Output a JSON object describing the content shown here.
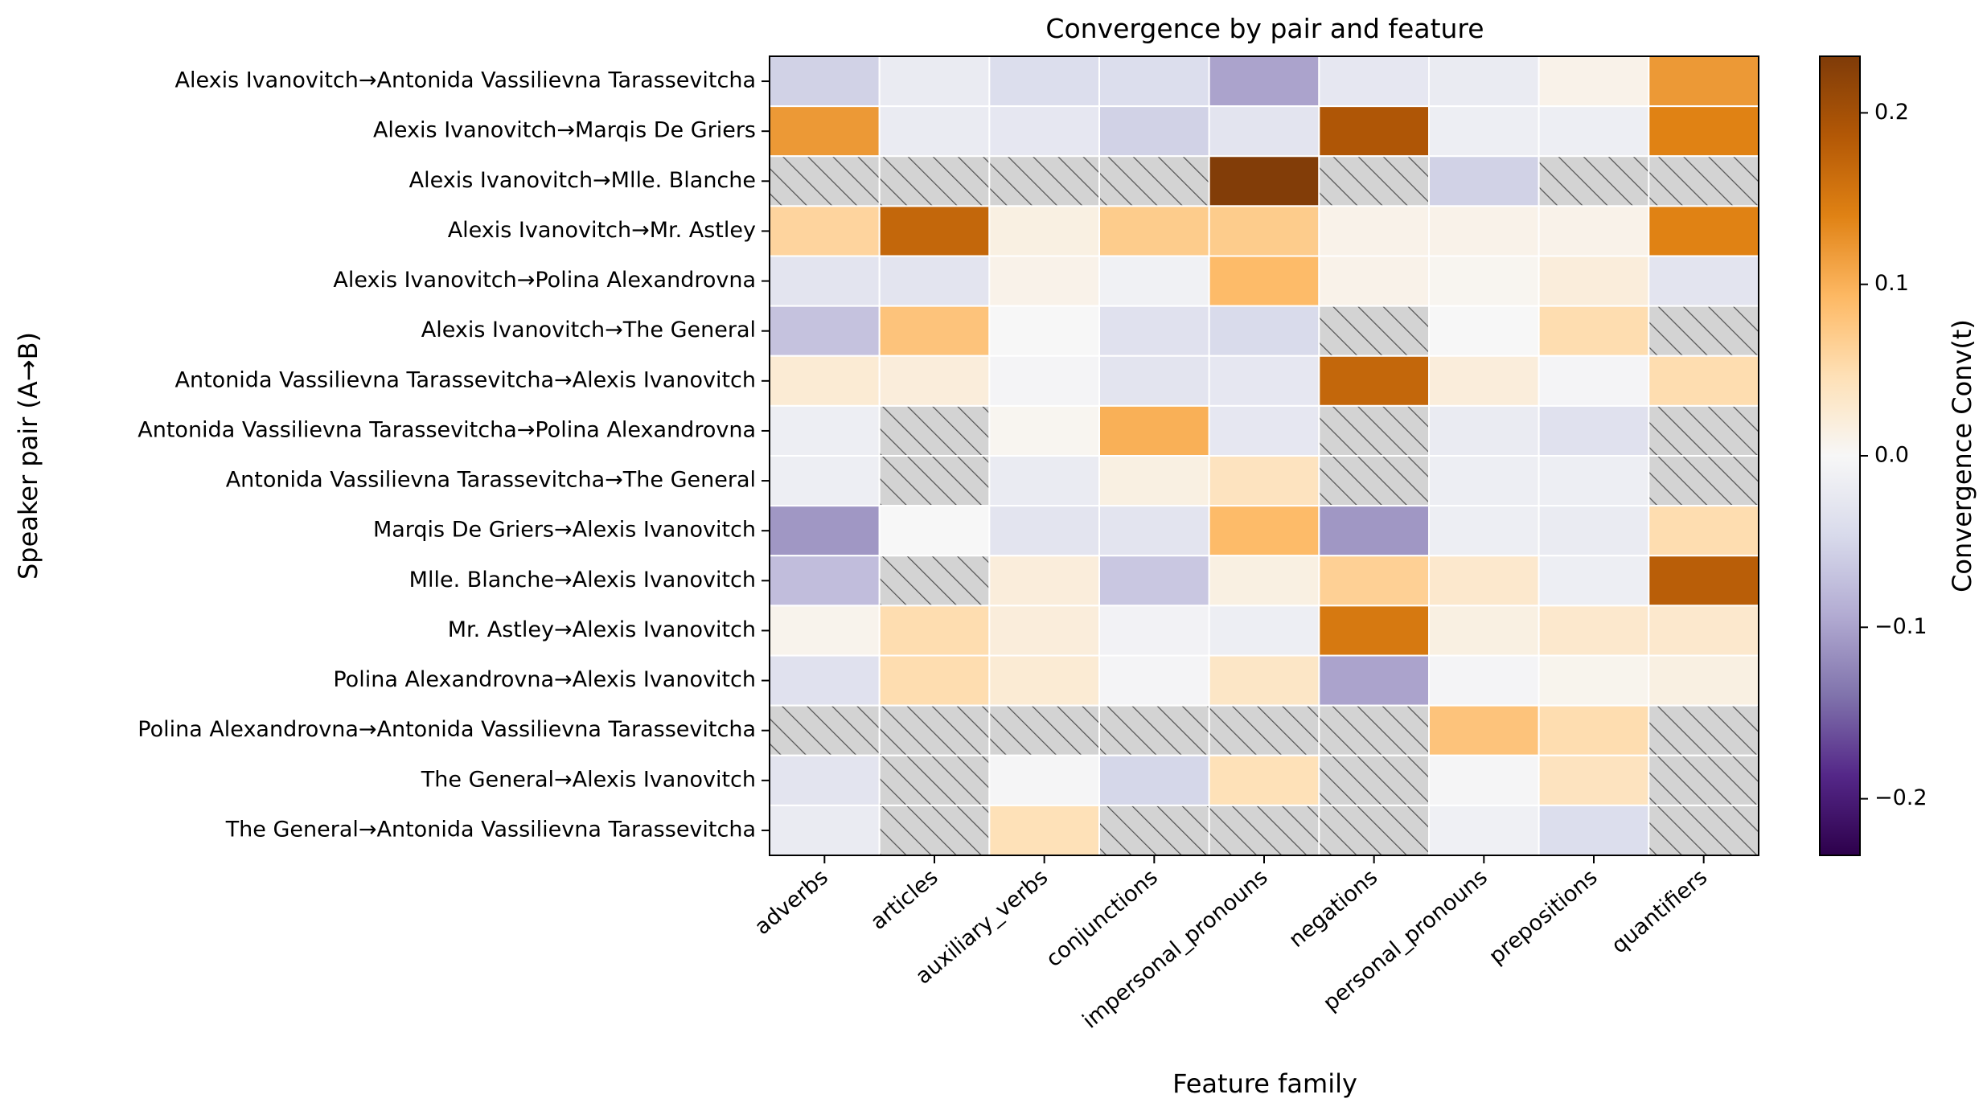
{
  "chart_data": {
    "type": "heatmap",
    "title": "Convergence by pair and feature",
    "xlabel": "Feature family",
    "ylabel": "Speaker pair (A→B)",
    "colorbar_label": "Convergence Conv(t)",
    "colormap": "PuOr_r",
    "vmin": -0.233,
    "vmax": 0.233,
    "colorbar_ticks": [
      -0.2,
      -0.1,
      0.0,
      0.1,
      0.2
    ],
    "colorbar_tick_labels": [
      "−0.2",
      "−0.1",
      "0.0",
      "0.1",
      "0.2"
    ],
    "missing_style": "gray hatched",
    "columns": [
      "adverbs",
      "articles",
      "auxiliary_verbs",
      "conjunctions",
      "impersonal_pronouns",
      "negations",
      "personal_pronouns",
      "prepositions",
      "quantifiers"
    ],
    "rows": [
      "Alexis Ivanovitch→Antonida Vassilievna Tarassevitcha",
      "Alexis Ivanovitch→Marqis De Griers",
      "Alexis Ivanovitch→Mlle. Blanche",
      "Alexis Ivanovitch→Mr. Astley",
      "Alexis Ivanovitch→Polina Alexandrovna",
      "Alexis Ivanovitch→The General",
      "Antonida Vassilievna Tarassevitcha→Alexis Ivanovitch",
      "Antonida Vassilievna Tarassevitcha→Polina Alexandrovna",
      "Antonida Vassilievna Tarassevitcha→The General",
      "Marqis De Griers→Alexis Ivanovitch",
      "Mlle. Blanche→Alexis Ivanovitch",
      "Mr. Astley→Alexis Ivanovitch",
      "Polina Alexandrovna→Alexis Ivanovitch",
      "Polina Alexandrovna→Antonida Vassilievna Tarassevitcha",
      "The General→Alexis Ivanovitch",
      "The General→Antonida Vassilievna Tarassevitcha"
    ],
    "values": [
      [
        -0.055,
        -0.02,
        -0.04,
        -0.04,
        -0.1,
        -0.025,
        -0.02,
        0.01,
        0.12
      ],
      [
        0.12,
        -0.02,
        -0.025,
        -0.055,
        -0.03,
        0.19,
        -0.015,
        -0.015,
        0.14
      ],
      [
        null,
        null,
        null,
        null,
        0.23,
        null,
        -0.055,
        null,
        null
      ],
      [
        0.06,
        0.17,
        0.015,
        0.07,
        0.07,
        0.01,
        0.01,
        0.01,
        0.14
      ],
      [
        -0.03,
        -0.03,
        0.01,
        -0.01,
        0.09,
        0.01,
        0.005,
        0.02,
        -0.03
      ],
      [
        -0.07,
        0.08,
        0.0,
        -0.035,
        -0.045,
        null,
        0.0,
        0.05,
        null
      ],
      [
        0.025,
        0.02,
        -0.005,
        -0.03,
        -0.025,
        0.17,
        0.02,
        -0.005,
        0.05
      ],
      [
        -0.015,
        null,
        0.005,
        0.1,
        -0.025,
        null,
        -0.02,
        -0.035,
        null
      ],
      [
        -0.015,
        null,
        -0.02,
        0.015,
        0.04,
        null,
        -0.015,
        -0.015,
        null
      ],
      [
        -0.11,
        0.0,
        -0.03,
        -0.03,
        0.09,
        -0.11,
        -0.015,
        -0.02,
        0.05
      ],
      [
        -0.075,
        null,
        0.02,
        -0.065,
        0.015,
        0.065,
        0.03,
        -0.015,
        0.18
      ],
      [
        0.008,
        0.05,
        0.02,
        -0.008,
        -0.015,
        0.15,
        0.015,
        0.03,
        0.03
      ],
      [
        -0.035,
        0.05,
        0.025,
        -0.005,
        0.035,
        -0.1,
        -0.005,
        0.007,
        0.015
      ],
      [
        null,
        null,
        null,
        null,
        null,
        null,
        0.08,
        0.05,
        null
      ],
      [
        -0.03,
        null,
        -0.003,
        -0.05,
        0.045,
        null,
        -0.003,
        0.04,
        null
      ],
      [
        -0.02,
        null,
        0.045,
        null,
        null,
        null,
        -0.012,
        -0.04,
        null
      ]
    ]
  }
}
